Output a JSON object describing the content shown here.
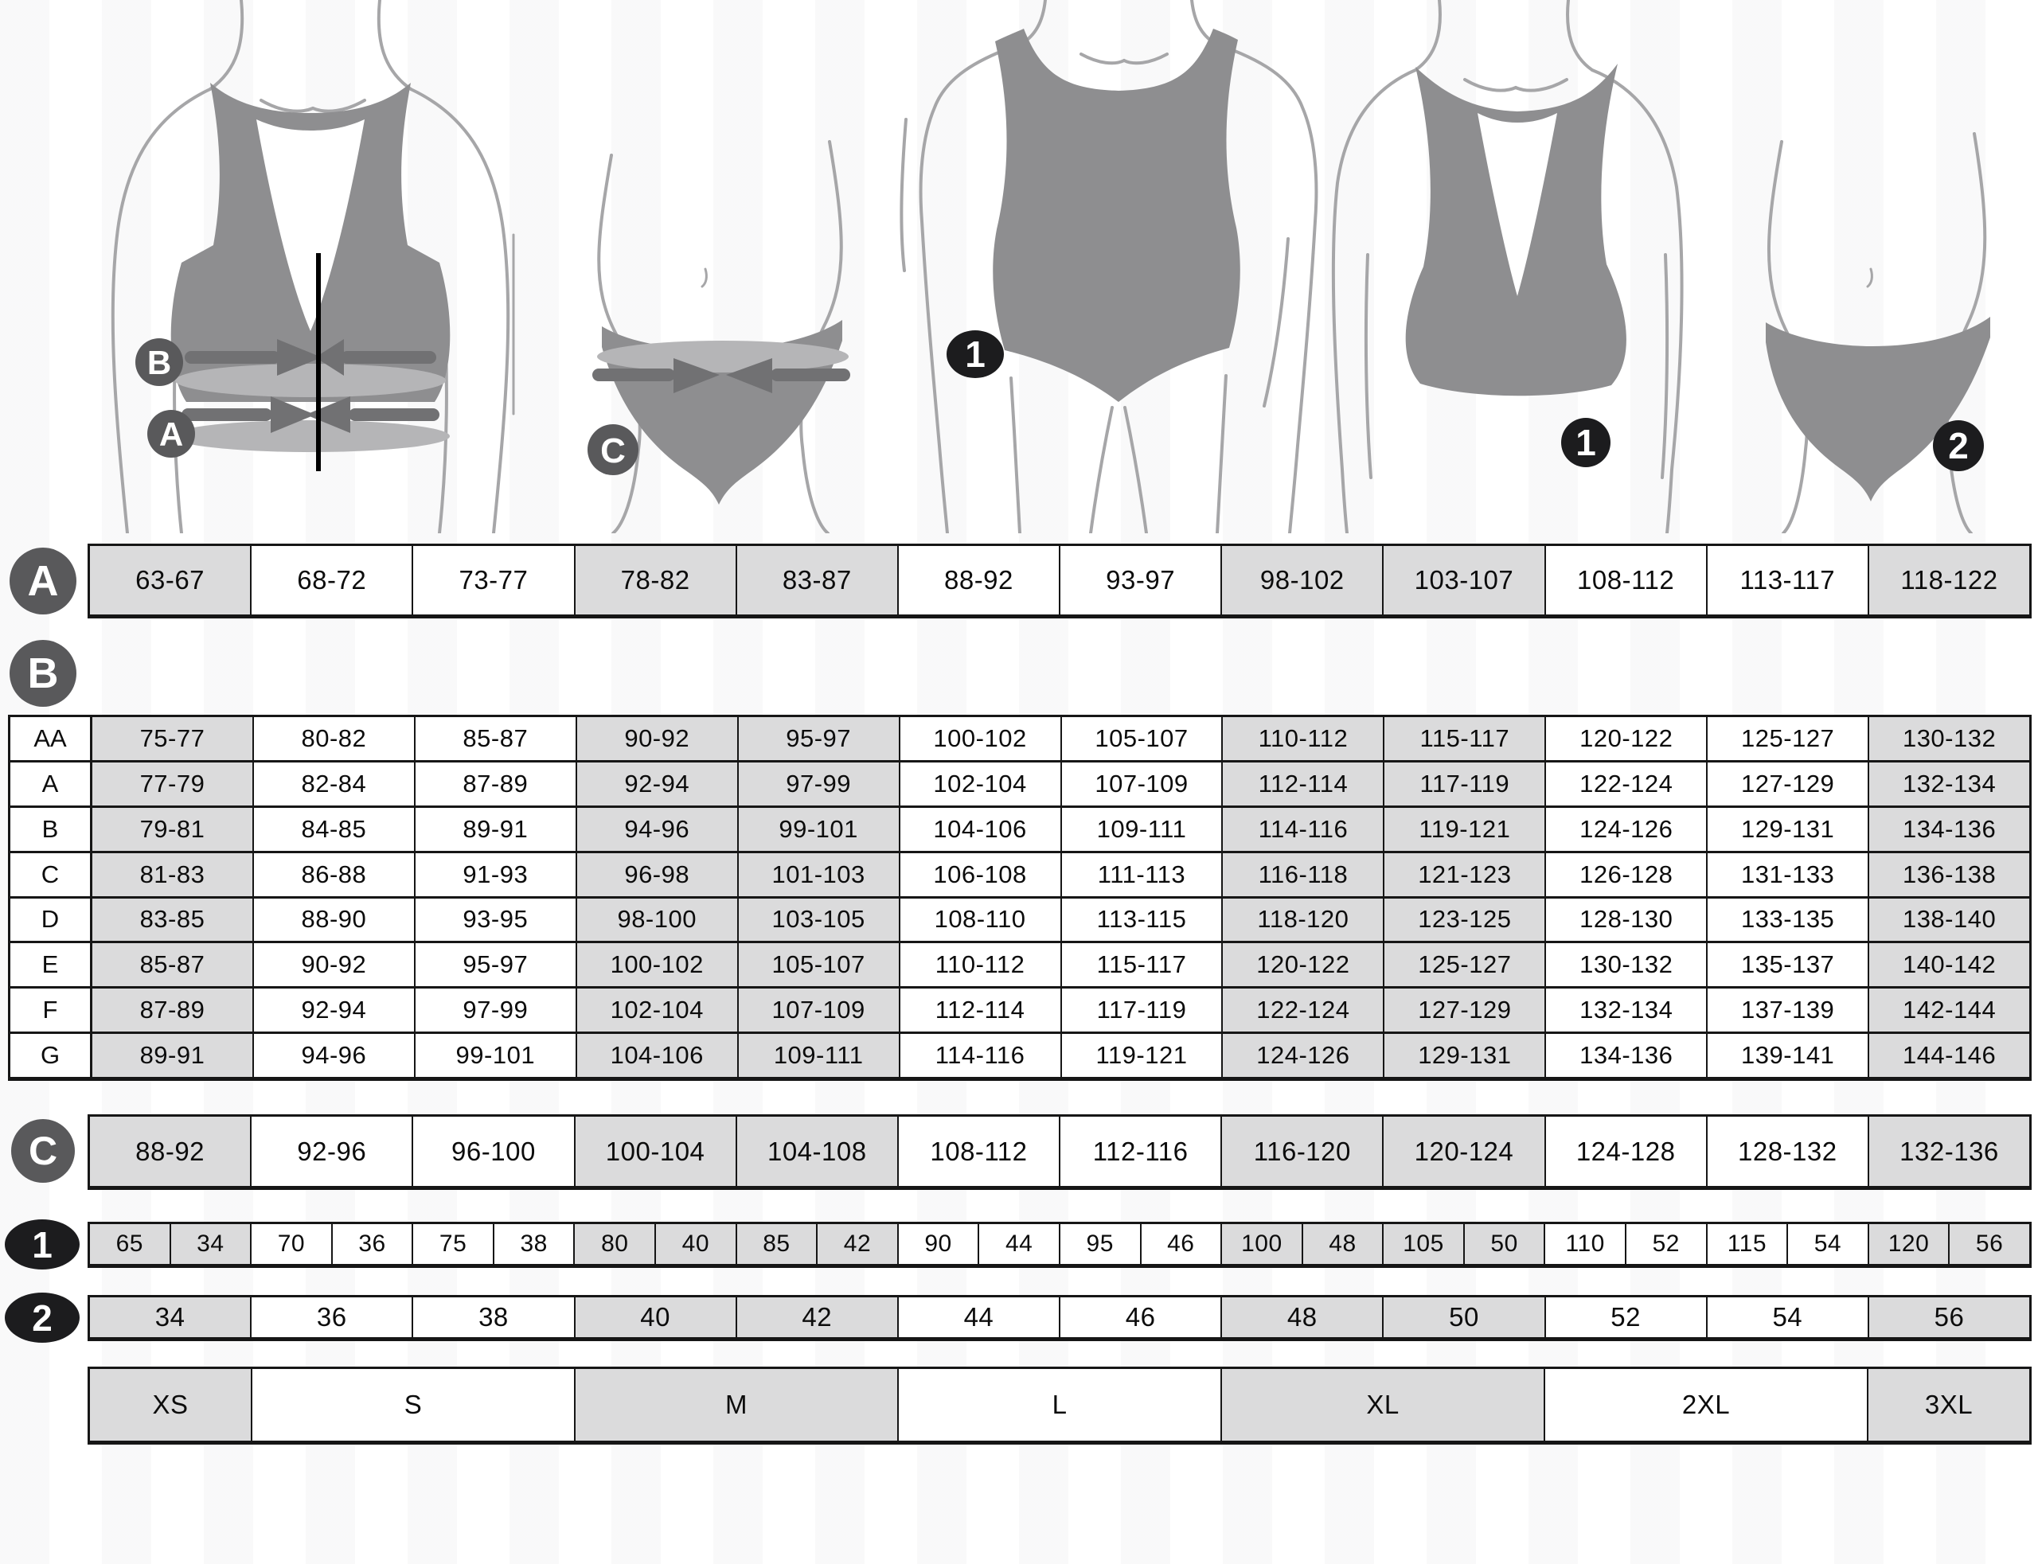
{
  "colors": {
    "cell_gray": "#dbdbdc",
    "cell_white": "#ffffff",
    "border": "#161616",
    "badge_gray": "#59595b",
    "badge_black": "#1c1c1e",
    "garment_gray": "#8e8e90",
    "band_light": "#b5b5b7",
    "band_dark": "#717173",
    "body_outline": "#a6a6a8"
  },
  "figures": {
    "bra_measure": {
      "badge_bust": "B",
      "badge_underbust": "A"
    },
    "panty_measure": {
      "badge_hip": "C"
    },
    "swimsuit": {
      "badge": "1"
    },
    "bra": {
      "badge": "1"
    },
    "panty": {
      "badge": "2"
    }
  },
  "underbust_row": {
    "icon": "A",
    "cells": [
      "63-67",
      "68-72",
      "73-77",
      "78-82",
      "83-87",
      "88-92",
      "93-97",
      "98-102",
      "103-107",
      "108-112",
      "113-117",
      "118-122"
    ]
  },
  "cup_table": {
    "icon": "B",
    "rows": [
      {
        "label": "AA",
        "cells": [
          "75-77",
          "80-82",
          "85-87",
          "90-92",
          "95-97",
          "100-102",
          "105-107",
          "110-112",
          "115-117",
          "120-122",
          "125-127",
          "130-132"
        ]
      },
      {
        "label": "A",
        "cells": [
          "77-79",
          "82-84",
          "87-89",
          "92-94",
          "97-99",
          "102-104",
          "107-109",
          "112-114",
          "117-119",
          "122-124",
          "127-129",
          "132-134"
        ]
      },
      {
        "label": "B",
        "cells": [
          "79-81",
          "84-85",
          "89-91",
          "94-96",
          "99-101",
          "104-106",
          "109-111",
          "114-116",
          "119-121",
          "124-126",
          "129-131",
          "134-136"
        ]
      },
      {
        "label": "C",
        "cells": [
          "81-83",
          "86-88",
          "91-93",
          "96-98",
          "101-103",
          "106-108",
          "111-113",
          "116-118",
          "121-123",
          "126-128",
          "131-133",
          "136-138"
        ]
      },
      {
        "label": "D",
        "cells": [
          "83-85",
          "88-90",
          "93-95",
          "98-100",
          "103-105",
          "108-110",
          "113-115",
          "118-120",
          "123-125",
          "128-130",
          "133-135",
          "138-140"
        ]
      },
      {
        "label": "E",
        "cells": [
          "85-87",
          "90-92",
          "95-97",
          "100-102",
          "105-107",
          "110-112",
          "115-117",
          "120-122",
          "125-127",
          "130-132",
          "135-137",
          "140-142"
        ]
      },
      {
        "label": "F",
        "cells": [
          "87-89",
          "92-94",
          "97-99",
          "102-104",
          "107-109",
          "112-114",
          "117-119",
          "122-124",
          "127-129",
          "132-134",
          "137-139",
          "142-144"
        ]
      },
      {
        "label": "G",
        "cells": [
          "89-91",
          "94-96",
          "99-101",
          "104-106",
          "109-111",
          "114-116",
          "119-121",
          "124-126",
          "129-131",
          "134-136",
          "139-141",
          "144-146"
        ]
      }
    ]
  },
  "hip_row": {
    "icon": "C",
    "cells": [
      "88-92",
      "92-96",
      "96-100",
      "100-104",
      "104-108",
      "108-112",
      "112-116",
      "116-120",
      "120-124",
      "124-128",
      "128-132",
      "132-136"
    ]
  },
  "bra_size_row": {
    "icon": "1",
    "pairs": [
      [
        "65",
        "34"
      ],
      [
        "70",
        "36"
      ],
      [
        "75",
        "38"
      ],
      [
        "80",
        "40"
      ],
      [
        "85",
        "42"
      ],
      [
        "90",
        "44"
      ],
      [
        "95",
        "46"
      ],
      [
        "100",
        "48"
      ],
      [
        "105",
        "50"
      ],
      [
        "110",
        "52"
      ],
      [
        "115",
        "54"
      ],
      [
        "120",
        "56"
      ]
    ]
  },
  "panty_size_row": {
    "icon": "2",
    "cells": [
      "34",
      "36",
      "38",
      "40",
      "42",
      "44",
      "46",
      "48",
      "50",
      "52",
      "54",
      "56"
    ]
  },
  "size_row": {
    "cells": [
      "XS",
      "S",
      "M",
      "L",
      "XL",
      "2XL",
      "3XL"
    ],
    "spans": [
      1,
      2,
      2,
      2,
      2,
      2,
      1
    ]
  },
  "shading": {
    "gray_columns": [
      0,
      3,
      4,
      7,
      8,
      11
    ],
    "gray_sizes": [
      0,
      2,
      4,
      6
    ]
  }
}
